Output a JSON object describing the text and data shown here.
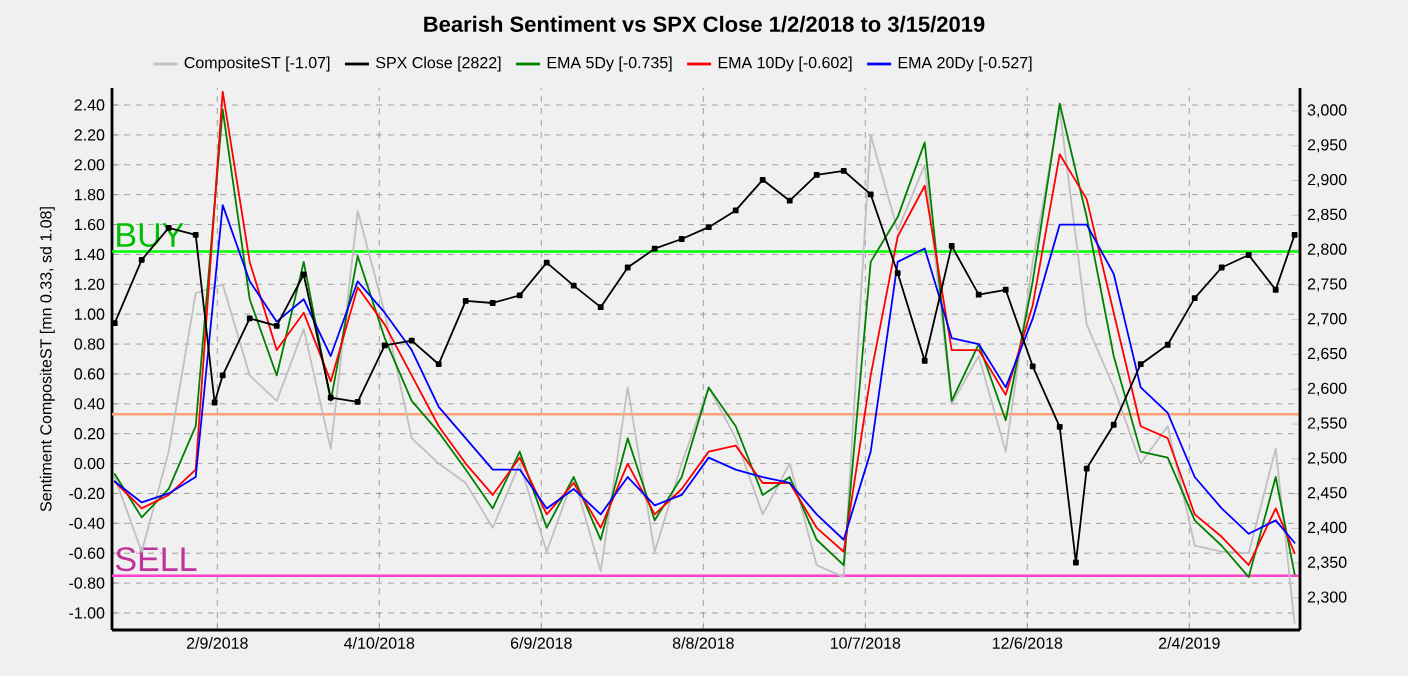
{
  "chart_data": {
    "type": "line",
    "title": "Bearish Sentiment vs SPX Close 1/2/2018 to 3/15/2019",
    "ylabel": "Sentiment CompositeST [mn 0.33, sd 1.08]",
    "xlim": [
      "2018-01-01",
      "2019-03-17"
    ],
    "xticks": [
      {
        "value": "2018-02-09",
        "label": "2/9/2018"
      },
      {
        "value": "2018-04-10",
        "label": "4/10/2018"
      },
      {
        "value": "2018-06-09",
        "label": "6/9/2018"
      },
      {
        "value": "2018-08-08",
        "label": "8/8/2018"
      },
      {
        "value": "2018-10-07",
        "label": "10/7/2018"
      },
      {
        "value": "2018-12-06",
        "label": "12/6/2018"
      },
      {
        "value": "2019-02-04",
        "label": "2/4/2019"
      }
    ],
    "ylim": [
      -1.114,
      2.514
    ],
    "yticks": [
      {
        "value": -1.0,
        "label": "-1.00"
      },
      {
        "value": -0.8,
        "label": "-0.80"
      },
      {
        "value": -0.6,
        "label": "-0.60"
      },
      {
        "value": -0.4,
        "label": "-0.40"
      },
      {
        "value": -0.2,
        "label": "-0.20"
      },
      {
        "value": 0,
        "label": "0.00"
      },
      {
        "value": 0.2,
        "label": "0.20"
      },
      {
        "value": 0.4,
        "label": "0.40"
      },
      {
        "value": 0.6,
        "label": "0.60"
      },
      {
        "value": 0.8,
        "label": "0.80"
      },
      {
        "value": 1.0,
        "label": "1.00"
      },
      {
        "value": 1.2,
        "label": "1.20"
      },
      {
        "value": 1.4,
        "label": "1.40"
      },
      {
        "value": 1.6,
        "label": "1.60"
      },
      {
        "value": 1.8,
        "label": "1.80"
      },
      {
        "value": 2.0,
        "label": "2.00"
      },
      {
        "value": 2.2,
        "label": "2.20"
      },
      {
        "value": 2.4,
        "label": "2.40"
      }
    ],
    "y2lim": [
      2254,
      3033
    ],
    "y2ticks": [
      {
        "value": 2300,
        "label": "2,300"
      },
      {
        "value": 2350,
        "label": "2,350"
      },
      {
        "value": 2400,
        "label": "2,400"
      },
      {
        "value": 2450,
        "label": "2,450"
      },
      {
        "value": 2500,
        "label": "2,500"
      },
      {
        "value": 2550,
        "label": "2,550"
      },
      {
        "value": 2600,
        "label": "2,600"
      },
      {
        "value": 2650,
        "label": "2,650"
      },
      {
        "value": 2700,
        "label": "2,700"
      },
      {
        "value": 2750,
        "label": "2,750"
      },
      {
        "value": 2800,
        "label": "2,800"
      },
      {
        "value": 2850,
        "label": "2,850"
      },
      {
        "value": 2900,
        "label": "2,900"
      },
      {
        "value": 2950,
        "label": "2,950"
      },
      {
        "value": 3000,
        "label": "3,000"
      }
    ],
    "grid": true,
    "legend": "top",
    "ref_lines": [
      {
        "axis": "y",
        "value": 1.42,
        "label": "BUY",
        "color": "#00ff00"
      },
      {
        "axis": "y",
        "value": 0.33,
        "color": "#ffa07a"
      },
      {
        "axis": "y",
        "value": -0.75,
        "label": "SELL",
        "color": "#ff44cc"
      }
    ],
    "x": [
      "2018-01-02",
      "2018-01-12",
      "2018-01-22",
      "2018-02-01",
      "2018-02-11",
      "2018-02-21",
      "2018-03-03",
      "2018-03-13",
      "2018-03-23",
      "2018-04-02",
      "2018-04-12",
      "2018-04-22",
      "2018-05-02",
      "2018-05-12",
      "2018-05-22",
      "2018-06-01",
      "2018-06-11",
      "2018-06-21",
      "2018-07-01",
      "2018-07-11",
      "2018-07-21",
      "2018-07-31",
      "2018-08-10",
      "2018-08-20",
      "2018-08-30",
      "2018-09-09",
      "2018-09-19",
      "2018-09-29",
      "2018-10-09",
      "2018-10-19",
      "2018-10-29",
      "2018-11-08",
      "2018-11-18",
      "2018-11-28",
      "2018-12-08",
      "2018-12-18",
      "2018-12-28",
      "2019-01-07",
      "2019-01-17",
      "2019-01-27",
      "2019-02-06",
      "2019-02-16",
      "2019-02-26",
      "2019-03-08",
      "2019-03-15"
    ],
    "series": [
      {
        "name": "CompositeST  [-1.07]",
        "color": "#c0c0c0",
        "values": [
          -0.09,
          -0.59,
          0.08,
          1.14,
          1.2,
          0.59,
          0.42,
          0.9,
          0.1,
          1.69,
          1.01,
          0.17,
          0.0,
          -0.13,
          -0.43,
          0.0,
          -0.59,
          -0.09,
          -0.72,
          0.51,
          -0.59,
          0.0,
          0.51,
          0.17,
          -0.34,
          0.0,
          -0.68,
          -0.76,
          2.2,
          1.56,
          2.0,
          0.4,
          0.72,
          0.08,
          1.35,
          2.37,
          0.93,
          0.51,
          0.0,
          0.25,
          -0.55,
          -0.59,
          -0.6,
          0.1,
          -1.07
        ]
      },
      {
        "name": "SPX Close [2822]",
        "color": "#000000",
        "axis": "y2",
        "marker": "square",
        "x": [
          "2018-01-02",
          "2018-01-12",
          "2018-01-22",
          "2018-02-01",
          "2018-02-08",
          "2018-02-11",
          "2018-02-21",
          "2018-03-03",
          "2018-03-13",
          "2018-03-23",
          "2018-04-02",
          "2018-04-12",
          "2018-04-22",
          "2018-05-02",
          "2018-05-12",
          "2018-05-22",
          "2018-06-01",
          "2018-06-11",
          "2018-06-21",
          "2018-07-01",
          "2018-07-11",
          "2018-07-21",
          "2018-07-31",
          "2018-08-10",
          "2018-08-20",
          "2018-08-30",
          "2018-09-09",
          "2018-09-19",
          "2018-09-29",
          "2018-10-09",
          "2018-10-19",
          "2018-10-29",
          "2018-11-08",
          "2018-11-18",
          "2018-11-28",
          "2018-12-08",
          "2018-12-18",
          "2018-12-24",
          "2018-12-28",
          "2019-01-07",
          "2019-01-17",
          "2019-01-27",
          "2019-02-06",
          "2019-02-16",
          "2019-02-26",
          "2019-03-08",
          "2019-03-15"
        ],
        "values": [
          2695,
          2786,
          2832,
          2822,
          2581,
          2620,
          2702,
          2691,
          2765,
          2588,
          2582,
          2663,
          2670,
          2636,
          2727,
          2724,
          2735,
          2782,
          2749,
          2718,
          2775,
          2802,
          2816,
          2833,
          2857,
          2901,
          2871,
          2908,
          2914,
          2880,
          2767,
          2641,
          2806,
          2736,
          2743,
          2633,
          2546,
          2351,
          2486,
          2549,
          2636,
          2664,
          2731,
          2775,
          2793,
          2743,
          2822
        ]
      },
      {
        "name": "EMA 5Dy [-0.735]",
        "color": "#008000",
        "values": [
          -0.07,
          -0.36,
          -0.17,
          0.25,
          2.37,
          1.1,
          0.59,
          1.35,
          0.42,
          1.39,
          0.84,
          0.42,
          0.21,
          -0.04,
          -0.3,
          0.08,
          -0.43,
          -0.09,
          -0.51,
          0.17,
          -0.38,
          -0.09,
          0.51,
          0.25,
          -0.21,
          -0.09,
          -0.51,
          -0.68,
          1.35,
          1.65,
          2.15,
          0.42,
          0.8,
          0.29,
          1.22,
          2.41,
          1.65,
          0.72,
          0.08,
          0.04,
          -0.38,
          -0.55,
          -0.76,
          -0.09,
          -0.74
        ]
      },
      {
        "name": "EMA 10Dy [-0.602]",
        "color": "#ff0000",
        "values": [
          -0.12,
          -0.3,
          -0.21,
          -0.04,
          2.49,
          1.35,
          0.76,
          1.01,
          0.55,
          1.18,
          0.93,
          0.59,
          0.25,
          0.0,
          -0.21,
          0.04,
          -0.34,
          -0.13,
          -0.43,
          0.0,
          -0.34,
          -0.17,
          0.08,
          0.12,
          -0.13,
          -0.13,
          -0.43,
          -0.59,
          0.59,
          1.52,
          1.86,
          0.76,
          0.76,
          0.46,
          1.06,
          2.07,
          1.77,
          1.01,
          0.25,
          0.17,
          -0.34,
          -0.49,
          -0.68,
          -0.3,
          -0.6
        ]
      },
      {
        "name": "EMA 20Dy [-0.527]",
        "color": "#0000ff",
        "values": [
          -0.12,
          -0.26,
          -0.2,
          -0.09,
          1.73,
          1.22,
          0.95,
          1.1,
          0.72,
          1.22,
          1.01,
          0.76,
          0.38,
          0.17,
          -0.04,
          -0.04,
          -0.3,
          -0.17,
          -0.34,
          -0.09,
          -0.28,
          -0.21,
          0.04,
          -0.04,
          -0.09,
          -0.13,
          -0.34,
          -0.51,
          0.08,
          1.35,
          1.44,
          0.84,
          0.8,
          0.51,
          0.97,
          1.6,
          1.6,
          1.27,
          0.51,
          0.34,
          -0.09,
          -0.3,
          -0.47,
          -0.38,
          -0.53
        ]
      }
    ]
  }
}
